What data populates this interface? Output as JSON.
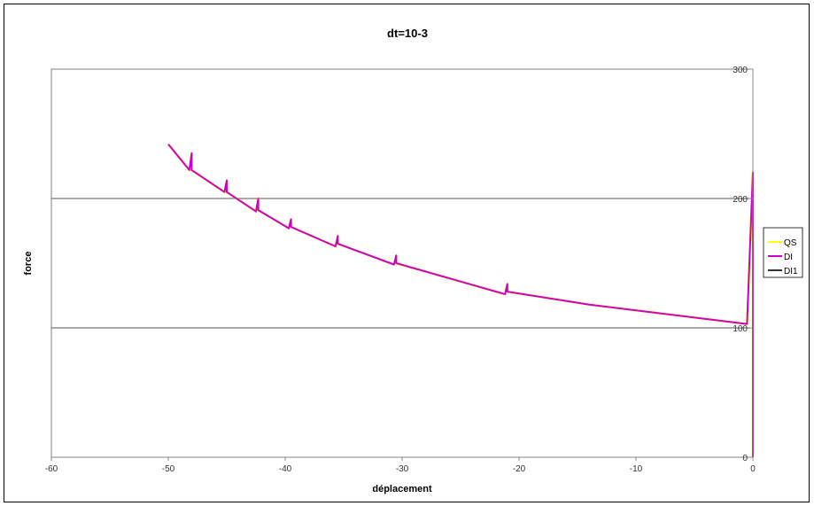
{
  "chart_data": {
    "type": "line",
    "title": "dt=10-3",
    "xlabel": "déplacement",
    "ylabel": "force",
    "xlim": [
      -60,
      0
    ],
    "ylim": [
      0,
      300
    ],
    "x_ticks": [
      "-60",
      "-50",
      "-40",
      "-30",
      "-20",
      "-10",
      "0"
    ],
    "y_ticks": [
      "0",
      "100",
      "200",
      "300"
    ],
    "grid": "horizontal",
    "legend_position": "right",
    "series": [
      {
        "name": "QS",
        "color": "#ffff00",
        "points": [
          [
            0,
            0
          ],
          [
            0,
            60
          ],
          [
            0,
            100
          ],
          [
            0,
            180
          ],
          [
            0,
            220
          ],
          [
            -0.5,
            103
          ],
          [
            -14,
            118
          ],
          [
            -21,
            128
          ],
          [
            -21,
            134
          ],
          [
            -21.2,
            126
          ],
          [
            -30.5,
            150
          ],
          [
            -30.5,
            156
          ],
          [
            -30.7,
            149
          ],
          [
            -35.5,
            165
          ],
          [
            -35.5,
            171
          ],
          [
            -35.7,
            163
          ],
          [
            -39.5,
            178
          ],
          [
            -39.5,
            184
          ],
          [
            -39.7,
            177
          ],
          [
            -42.3,
            191
          ],
          [
            -42.3,
            200
          ],
          [
            -42.5,
            190
          ],
          [
            -45,
            205
          ],
          [
            -45,
            214
          ],
          [
            -45.2,
            205
          ],
          [
            -48,
            222
          ],
          [
            -48,
            235
          ],
          [
            -48.2,
            222
          ],
          [
            -50,
            242
          ]
        ]
      },
      {
        "name": "DI",
        "color": "#cc00cc",
        "points": [
          [
            0,
            0
          ],
          [
            0,
            60
          ],
          [
            0,
            100
          ],
          [
            0,
            180
          ],
          [
            0,
            220
          ],
          [
            -0.5,
            103
          ],
          [
            -14,
            118
          ],
          [
            -21,
            128
          ],
          [
            -21,
            134
          ],
          [
            -21.2,
            126
          ],
          [
            -30.5,
            150
          ],
          [
            -30.5,
            156
          ],
          [
            -30.7,
            149
          ],
          [
            -35.5,
            165
          ],
          [
            -35.5,
            171
          ],
          [
            -35.7,
            163
          ],
          [
            -39.5,
            178
          ],
          [
            -39.5,
            184
          ],
          [
            -39.7,
            177
          ],
          [
            -42.3,
            191
          ],
          [
            -42.3,
            200
          ],
          [
            -42.5,
            190
          ],
          [
            -45,
            205
          ],
          [
            -45,
            214
          ],
          [
            -45.2,
            205
          ],
          [
            -48,
            222
          ],
          [
            -48,
            235
          ],
          [
            -48.2,
            222
          ],
          [
            -50,
            242
          ]
        ]
      },
      {
        "name": "DI1",
        "color": "#333333",
        "points": [
          [
            0,
            0
          ],
          [
            0,
            100
          ],
          [
            0,
            180
          ],
          [
            0,
            220
          ],
          [
            -0.5,
            103
          ]
        ]
      }
    ]
  }
}
